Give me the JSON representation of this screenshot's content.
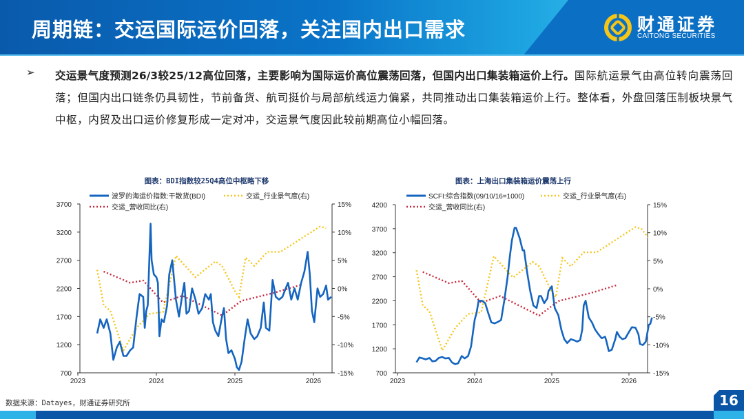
{
  "header": {
    "title": "周期链：交运国际运价回落，关注国内出口需求"
  },
  "logo": {
    "cn": "财通证券",
    "en": "CAITONG SECURITIES"
  },
  "colors": {
    "header_blue": "#0a5aac",
    "accent_light": "#2bb0e6",
    "logo_gold": "#f5c518",
    "bdi_line": "#1565c0",
    "sentiment": "#f5c518",
    "revenue": "#c8283c"
  },
  "body": {
    "bullet_icon": "arrow-bullet-icon",
    "bullet_glyph": "➢",
    "bold": "交运景气度预测26/3较25/12高位回落，主要影响为国际运价高位震荡回落，但国内出口集装箱运价上行。",
    "normal": "国际航运景气由高位转向震荡回落；但国内出口链条仍具韧性，节前备货、航司挺价与局部航线运力偏紧，共同推动出口集装箱运价上行。整体看，外盘回落压制板块景气中枢，内贸及出口运价修复形成一定对冲，交运景气度因此较前期高位小幅回落。"
  },
  "chart_data": [
    {
      "type": "line",
      "title": "图表：BDI指数较25Q4高位中枢略下移",
      "x_ticks": [
        "2023",
        "2024",
        "2025",
        "2026"
      ],
      "xlim": [
        "2023-01-01",
        "2026-03-28"
      ],
      "ylim_left": [
        700,
        3700
      ],
      "y_ticks_left": [
        "3700",
        "3200",
        "2700",
        "2200",
        "1700",
        "1200",
        "700"
      ],
      "ylim_right": [
        -15,
        15
      ],
      "y_ticks_right": [
        "15%",
        "10%",
        "5%",
        "0%",
        "-5%",
        "-10%",
        "-15%"
      ],
      "grid": false,
      "legend": "top",
      "series": [
        {
          "name": "波罗的海运价指数:干散货(BDI)",
          "axis": "left",
          "style": "solid",
          "color": "#1565c0",
          "points": [
            [
              "2023-04-01",
              1400
            ],
            [
              "2023-04-15",
              1650
            ],
            [
              "2023-05-01",
              1500
            ],
            [
              "2023-05-15",
              1650
            ],
            [
              "2023-06-01",
              1400
            ],
            [
              "2023-06-15",
              930
            ],
            [
              "2023-07-01",
              1150
            ],
            [
              "2023-07-15",
              1250
            ],
            [
              "2023-08-01",
              1000
            ],
            [
              "2023-08-15",
              1000
            ],
            [
              "2023-09-01",
              1100
            ],
            [
              "2023-09-15",
              1150
            ],
            [
              "2023-10-01",
              1700
            ],
            [
              "2023-10-15",
              2100
            ],
            [
              "2023-11-01",
              2050
            ],
            [
              "2023-11-08",
              1500
            ],
            [
              "2023-11-15",
              1800
            ],
            [
              "2023-11-22",
              1900
            ],
            [
              "2023-12-01",
              2900
            ],
            [
              "2023-12-05",
              3350
            ],
            [
              "2023-12-10",
              2700
            ],
            [
              "2023-12-20",
              2450
            ],
            [
              "2024-01-01",
              2400
            ],
            [
              "2024-01-08",
              2300
            ],
            [
              "2024-01-15",
              1350
            ],
            [
              "2024-01-25",
              1650
            ],
            [
              "2024-02-05",
              1600
            ],
            [
              "2024-02-20",
              1900
            ],
            [
              "2024-03-01",
              2450
            ],
            [
              "2024-03-15",
              2700
            ],
            [
              "2024-04-01",
              2000
            ],
            [
              "2024-04-15",
              1700
            ],
            [
              "2024-05-01",
              2100
            ],
            [
              "2024-05-10",
              2300
            ],
            [
              "2024-05-20",
              1750
            ],
            [
              "2024-06-01",
              1800
            ],
            [
              "2024-06-15",
              2200
            ],
            [
              "2024-07-01",
              2000
            ],
            [
              "2024-07-15",
              1750
            ],
            [
              "2024-08-01",
              1850
            ],
            [
              "2024-08-15",
              2100
            ],
            [
              "2024-09-01",
              2000
            ],
            [
              "2024-09-10",
              2100
            ],
            [
              "2024-09-20",
              1600
            ],
            [
              "2024-10-01",
              1450
            ],
            [
              "2024-10-15",
              1350
            ],
            [
              "2024-11-01",
              1700
            ],
            [
              "2024-11-10",
              1850
            ],
            [
              "2024-11-20",
              1300
            ],
            [
              "2024-12-01",
              1050
            ],
            [
              "2024-12-15",
              1100
            ],
            [
              "2025-01-01",
              950
            ],
            [
              "2025-01-10",
              800
            ],
            [
              "2025-01-20",
              750
            ],
            [
              "2025-02-01",
              900
            ],
            [
              "2025-02-15",
              1300
            ],
            [
              "2025-03-01",
              1650
            ],
            [
              "2025-03-15",
              1400
            ],
            [
              "2025-04-01",
              1300
            ],
            [
              "2025-04-15",
              1350
            ],
            [
              "2025-05-01",
              1500
            ],
            [
              "2025-05-15",
              1950
            ],
            [
              "2025-05-25",
              1500
            ],
            [
              "2025-06-10",
              1450
            ],
            [
              "2025-06-25",
              2350
            ],
            [
              "2025-07-10",
              2050
            ],
            [
              "2025-07-25",
              2000
            ],
            [
              "2025-08-10",
              2050
            ],
            [
              "2025-08-25",
              2200
            ],
            [
              "2025-09-05",
              2300
            ],
            [
              "2025-09-20",
              2000
            ],
            [
              "2025-10-05",
              2200
            ],
            [
              "2025-10-20",
              2000
            ],
            [
              "2025-11-05",
              2300
            ],
            [
              "2025-11-20",
              2500
            ],
            [
              "2025-12-05",
              2850
            ],
            [
              "2025-12-15",
              2450
            ],
            [
              "2025-12-25",
              1800
            ],
            [
              "2026-01-05",
              1600
            ],
            [
              "2026-01-20",
              2200
            ],
            [
              "2026-02-01",
              2050
            ],
            [
              "2026-02-15",
              2100
            ],
            [
              "2026-03-01",
              2250
            ],
            [
              "2026-03-10",
              2000
            ],
            [
              "2026-03-25",
              2050
            ]
          ]
        },
        {
          "name": "交运_行业景气度(右)",
          "axis": "right",
          "style": "dotted",
          "color": "#f5c518",
          "ref": "sentiment"
        },
        {
          "name": "交运_营收同比(右)",
          "axis": "right",
          "style": "dotted",
          "color": "#c8283c",
          "ref": "revenue"
        }
      ]
    },
    {
      "type": "line",
      "title": "图表：上海出口集装箱运价震荡上行",
      "x_ticks": [
        "2023",
        "2024",
        "2025",
        "2026"
      ],
      "xlim": [
        "2023-01-01",
        "2026-04-20"
      ],
      "ylim_left": [
        700,
        4200
      ],
      "y_ticks_left": [
        "4200",
        "3700",
        "3200",
        "2700",
        "2200",
        "1700",
        "1200",
        "700"
      ],
      "ylim_right": [
        -15,
        15
      ],
      "y_ticks_right": [
        "15%",
        "10%",
        "5%",
        "0%",
        "-5%",
        "-10%",
        "-15%"
      ],
      "grid": false,
      "legend": "top",
      "series": [
        {
          "name": "SCFI:综合指数(09/10/16=1000)",
          "axis": "left",
          "style": "solid",
          "color": "#1565c0",
          "points": [
            [
              "2023-04-01",
              920
            ],
            [
              "2023-04-15",
              1020
            ],
            [
              "2023-05-01",
              1000
            ],
            [
              "2023-05-15",
              980
            ],
            [
              "2023-06-01",
              1010
            ],
            [
              "2023-06-15",
              940
            ],
            [
              "2023-07-01",
              950
            ],
            [
              "2023-07-15",
              1010
            ],
            [
              "2023-08-01",
              1030
            ],
            [
              "2023-08-15",
              1000
            ],
            [
              "2023-09-01",
              1010
            ],
            [
              "2023-09-15",
              920
            ],
            [
              "2023-10-01",
              880
            ],
            [
              "2023-10-15",
              900
            ],
            [
              "2023-11-01",
              1050
            ],
            [
              "2023-11-15",
              1000
            ],
            [
              "2023-12-01",
              1050
            ],
            [
              "2023-12-15",
              1250
            ],
            [
              "2024-01-01",
              1800
            ],
            [
              "2024-01-10",
              1950
            ],
            [
              "2024-01-20",
              2200
            ],
            [
              "2024-02-05",
              2200
            ],
            [
              "2024-02-20",
              2150
            ],
            [
              "2024-03-05",
              1950
            ],
            [
              "2024-03-20",
              1750
            ],
            [
              "2024-04-05",
              1730
            ],
            [
              "2024-04-20",
              1760
            ],
            [
              "2024-05-05",
              1800
            ],
            [
              "2024-05-20",
              2200
            ],
            [
              "2024-06-05",
              2700
            ],
            [
              "2024-06-15",
              3100
            ],
            [
              "2024-06-25",
              3450
            ],
            [
              "2024-07-08",
              3720
            ],
            [
              "2024-07-15",
              3720
            ],
            [
              "2024-08-01",
              3500
            ],
            [
              "2024-08-15",
              3250
            ],
            [
              "2024-08-22",
              3250
            ],
            [
              "2024-09-05",
              2800
            ],
            [
              "2024-09-20",
              2400
            ],
            [
              "2024-10-05",
              2100
            ],
            [
              "2024-10-20",
              2050
            ],
            [
              "2024-11-01",
              2300
            ],
            [
              "2024-11-10",
              2300
            ],
            [
              "2024-11-25",
              2150
            ],
            [
              "2024-12-10",
              2250
            ],
            [
              "2024-12-15",
              2400
            ],
            [
              "2025-01-01",
              2500
            ],
            [
              "2025-01-15",
              2050
            ],
            [
              "2025-02-01",
              1900
            ],
            [
              "2025-02-15",
              1600
            ],
            [
              "2025-03-01",
              1400
            ],
            [
              "2025-03-15",
              1320
            ],
            [
              "2025-04-01",
              1400
            ],
            [
              "2025-04-15",
              1380
            ],
            [
              "2025-05-01",
              1350
            ],
            [
              "2025-05-15",
              1380
            ],
            [
              "2025-05-25",
              1600
            ],
            [
              "2025-06-01",
              2100
            ],
            [
              "2025-06-10",
              2200
            ],
            [
              "2025-06-25",
              1850
            ],
            [
              "2025-07-10",
              1750
            ],
            [
              "2025-07-25",
              1600
            ],
            [
              "2025-08-10",
              1500
            ],
            [
              "2025-08-25",
              1420
            ],
            [
              "2025-09-10",
              1450
            ],
            [
              "2025-09-15",
              1380
            ],
            [
              "2025-09-28",
              1150
            ],
            [
              "2025-10-12",
              1180
            ],
            [
              "2025-10-28",
              1400
            ],
            [
              "2025-11-05",
              1550
            ],
            [
              "2025-11-18",
              1450
            ],
            [
              "2025-12-01",
              1400
            ],
            [
              "2025-12-15",
              1420
            ],
            [
              "2026-01-01",
              1550
            ],
            [
              "2026-01-15",
              1650
            ],
            [
              "2026-02-01",
              1640
            ],
            [
              "2026-02-15",
              1500
            ],
            [
              "2026-02-22",
              1300
            ],
            [
              "2026-03-08",
              1280
            ],
            [
              "2026-03-22",
              1350
            ],
            [
              "2026-04-05",
              1700
            ],
            [
              "2026-04-12",
              1720
            ],
            [
              "2026-04-20",
              1850
            ]
          ]
        },
        {
          "name": "交运_行业景气度(右)",
          "axis": "right",
          "style": "dotted",
          "color": "#f5c518",
          "ref": "sentiment"
        },
        {
          "name": "交运_营收同比(右)",
          "axis": "right",
          "style": "dotted",
          "color": "#c8283c",
          "ref": "revenue"
        }
      ]
    }
  ],
  "shared_series": {
    "sentiment": [
      [
        "2023-04-01",
        3.3
      ],
      [
        "2023-05-01",
        -3
      ],
      [
        "2023-06-01",
        -4
      ],
      [
        "2023-08-01",
        -11
      ],
      [
        "2023-10-01",
        -7
      ],
      [
        "2023-12-01",
        -4.5
      ],
      [
        "2024-02-01",
        -4.2
      ],
      [
        "2024-04-01",
        5.8
      ],
      [
        "2024-07-01",
        2
      ],
      [
        "2024-10-01",
        4.8
      ],
      [
        "2024-11-01",
        4
      ],
      [
        "2025-01-01",
        -0.5
      ],
      [
        "2025-01-20",
        -1.5
      ],
      [
        "2025-02-20",
        5.5
      ],
      [
        "2025-04-01",
        4
      ],
      [
        "2025-06-01",
        6.5
      ],
      [
        "2025-08-01",
        6.5
      ],
      [
        "2025-10-01",
        8
      ],
      [
        "2025-12-01",
        9.5
      ],
      [
        "2026-02-01",
        11
      ],
      [
        "2026-03-01",
        10.7
      ],
      [
        "2026-04-01",
        9.2
      ]
    ],
    "revenue": [
      [
        "2023-05-01",
        3
      ],
      [
        "2023-09-01",
        1
      ],
      [
        "2023-11-01",
        1.4
      ],
      [
        "2024-02-01",
        -2.5
      ],
      [
        "2024-05-01",
        -1.3
      ],
      [
        "2024-11-01",
        -4.8
      ],
      [
        "2025-02-01",
        -2.2
      ],
      [
        "2025-07-01",
        -0.8
      ],
      [
        "2025-11-01",
        0.6
      ]
    ]
  },
  "footer": {
    "source": "数据来源：Datayes，财通证券研究所",
    "page": "16"
  }
}
